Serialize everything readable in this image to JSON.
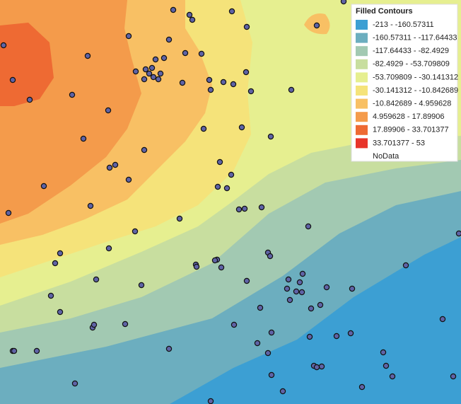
{
  "legend": {
    "title": "Filled Contours",
    "items": [
      {
        "label": "-213 - -160.57311",
        "color": "#3c9fd3"
      },
      {
        "label": "-160.57311 - -117.64433",
        "color": "#6caebf"
      },
      {
        "label": "-117.64433 - -82.4929",
        "color": "#a2c9b2"
      },
      {
        "label": "-82.4929 - -53.709809",
        "color": "#c8de9f"
      },
      {
        "label": "-53.709809 - -30.141312",
        "color": "#e6ef90"
      },
      {
        "label": "-30.141312 - -10.842689",
        "color": "#f5e37a"
      },
      {
        "label": "-10.842689 - 4.959628",
        "color": "#f8c064"
      },
      {
        "label": "4.959628 - 17.89906",
        "color": "#f49b4b"
      },
      {
        "label": "17.89906 - 33.701377",
        "color": "#ee6a33"
      },
      {
        "label": "33.701377 - 53",
        "color": "#e8352a"
      },
      {
        "label": "NoData"
      }
    ]
  }
}
